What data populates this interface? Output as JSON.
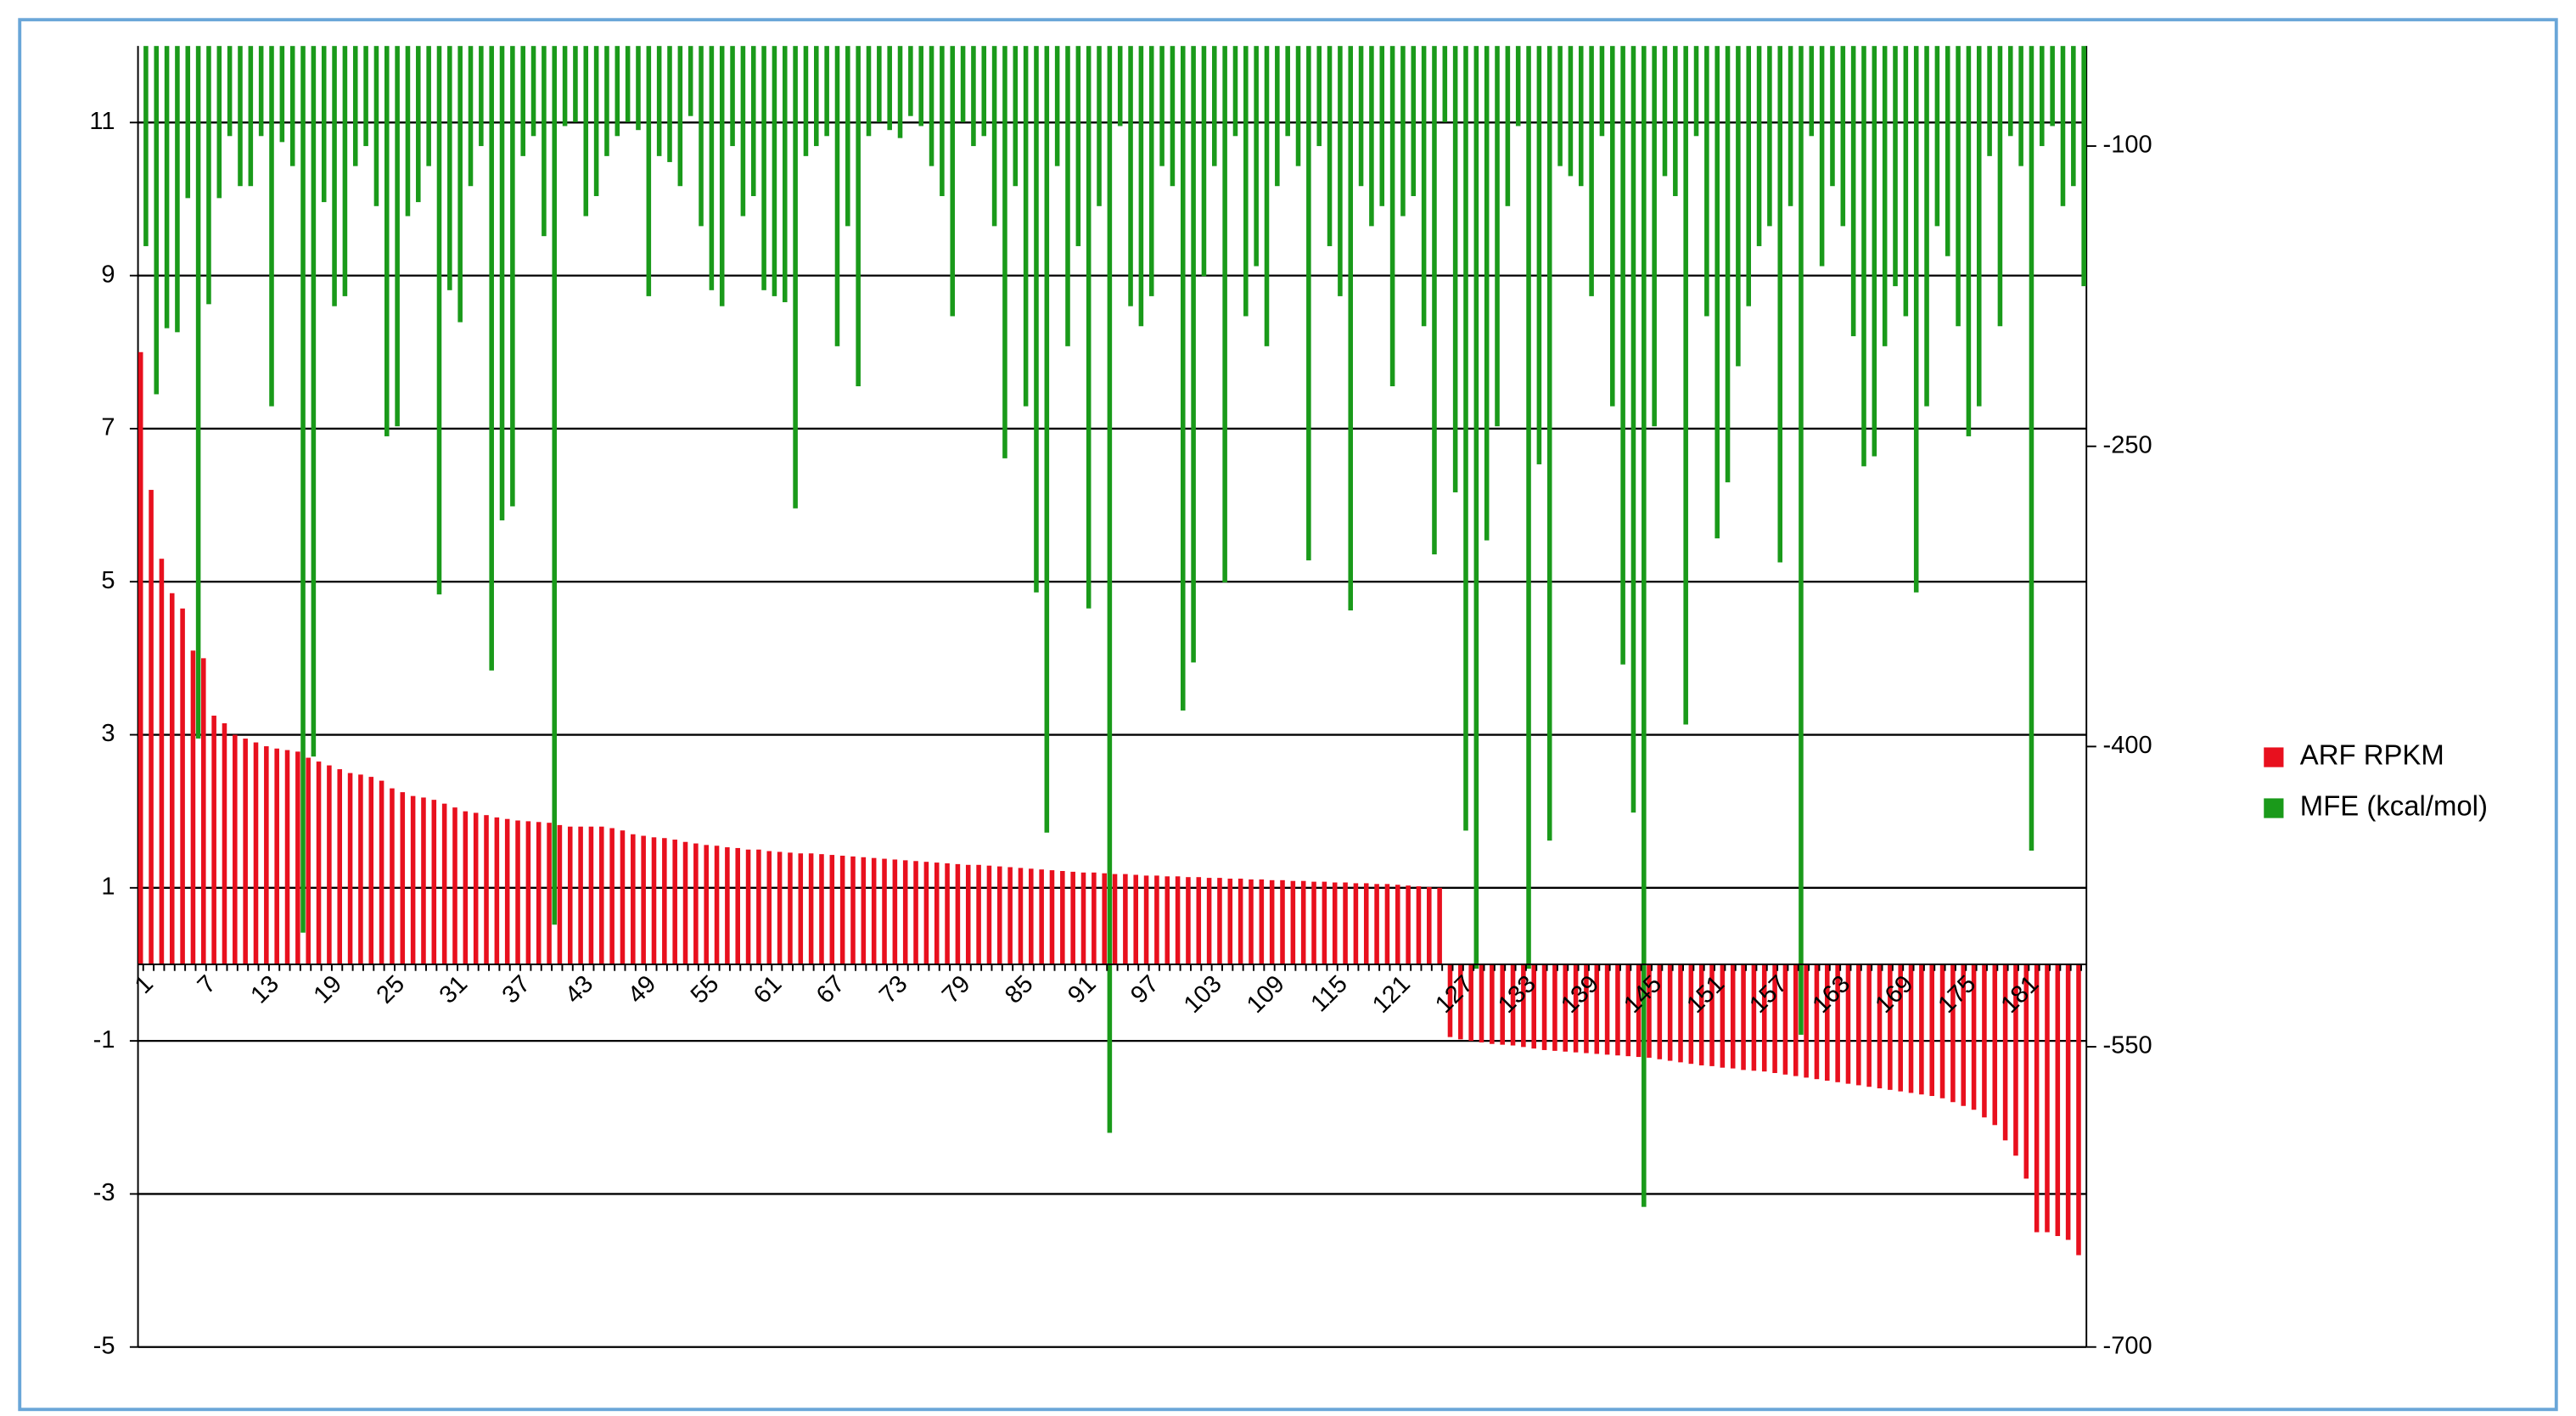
{
  "chart_data": {
    "type": "bar",
    "categories": [
      1,
      null,
      null,
      null,
      null,
      null,
      7,
      null,
      null,
      null,
      null,
      null,
      13,
      null,
      null,
      null,
      null,
      null,
      19,
      null,
      null,
      null,
      null,
      null,
      25,
      null,
      null,
      null,
      null,
      null,
      31,
      null,
      null,
      null,
      null,
      null,
      37,
      null,
      null,
      null,
      null,
      null,
      43,
      null,
      null,
      null,
      null,
      null,
      49,
      null,
      null,
      null,
      null,
      null,
      55,
      null,
      null,
      null,
      null,
      null,
      61,
      null,
      null,
      null,
      null,
      null,
      67,
      null,
      null,
      null,
      null,
      null,
      73,
      null,
      null,
      null,
      null,
      null,
      79,
      null,
      null,
      null,
      null,
      null,
      85,
      null,
      null,
      null,
      null,
      null,
      91,
      null,
      null,
      null,
      null,
      null,
      97,
      null,
      null,
      null,
      null,
      null,
      103,
      null,
      null,
      null,
      null,
      null,
      109,
      null,
      null,
      null,
      null,
      null,
      115,
      null,
      null,
      null,
      null,
      null,
      121,
      null,
      null,
      null,
      null,
      null,
      127,
      null,
      null,
      null,
      null,
      null,
      133,
      null,
      null,
      null,
      null,
      null,
      139,
      null,
      null,
      null,
      null,
      null,
      145,
      null,
      null,
      null,
      null,
      null,
      151,
      null,
      null,
      null,
      null,
      null,
      157,
      null,
      null,
      null,
      null,
      null,
      163,
      null,
      null,
      null,
      null,
      null,
      169,
      null,
      null,
      null,
      null,
      null,
      175,
      null,
      null,
      null,
      null,
      null,
      181,
      null,
      null,
      null,
      null,
      null
    ],
    "series": [
      {
        "name": "ARF RPKM",
        "color": "#e8101e",
        "values": [
          8.0,
          6.2,
          5.3,
          4.85,
          4.65,
          4.1,
          4.0,
          3.25,
          3.15,
          3.0,
          2.95,
          2.9,
          2.85,
          2.82,
          2.8,
          2.78,
          2.7,
          2.65,
          2.6,
          2.55,
          2.5,
          2.48,
          2.45,
          2.4,
          2.3,
          2.25,
          2.2,
          2.18,
          2.15,
          2.1,
          2.05,
          2.0,
          1.98,
          1.95,
          1.92,
          1.9,
          1.88,
          1.87,
          1.86,
          1.85,
          1.82,
          1.8,
          1.8,
          1.8,
          1.8,
          1.78,
          1.75,
          1.7,
          1.68,
          1.66,
          1.65,
          1.63,
          1.6,
          1.58,
          1.56,
          1.55,
          1.53,
          1.52,
          1.5,
          1.5,
          1.48,
          1.47,
          1.46,
          1.45,
          1.45,
          1.44,
          1.43,
          1.42,
          1.41,
          1.4,
          1.39,
          1.38,
          1.37,
          1.36,
          1.35,
          1.34,
          1.33,
          1.32,
          1.31,
          1.3,
          1.3,
          1.29,
          1.28,
          1.27,
          1.26,
          1.25,
          1.24,
          1.23,
          1.22,
          1.21,
          1.2,
          1.2,
          1.19,
          1.18,
          1.18,
          1.17,
          1.16,
          1.16,
          1.15,
          1.15,
          1.14,
          1.14,
          1.13,
          1.13,
          1.12,
          1.12,
          1.11,
          1.11,
          1.1,
          1.1,
          1.09,
          1.09,
          1.08,
          1.08,
          1.07,
          1.07,
          1.06,
          1.06,
          1.05,
          1.05,
          1.04,
          1.03,
          1.02,
          1.01,
          1.0,
          -0.95,
          -0.98,
          -1.0,
          -1.02,
          -1.04,
          -1.05,
          -1.06,
          -1.08,
          -1.1,
          -1.12,
          -1.13,
          -1.14,
          -1.15,
          -1.16,
          -1.17,
          -1.18,
          -1.19,
          -1.2,
          -1.21,
          -1.22,
          -1.24,
          -1.26,
          -1.28,
          -1.3,
          -1.32,
          -1.33,
          -1.35,
          -1.36,
          -1.38,
          -1.39,
          -1.4,
          -1.42,
          -1.44,
          -1.46,
          -1.48,
          -1.5,
          -1.52,
          -1.54,
          -1.56,
          -1.58,
          -1.6,
          -1.62,
          -1.64,
          -1.66,
          -1.68,
          -1.7,
          -1.72,
          -1.75,
          -1.8,
          -1.85,
          -1.9,
          -2.0,
          -2.1,
          -2.3,
          -2.5,
          -2.8,
          -3.5,
          -3.5,
          -3.55,
          -3.6,
          -3.8
        ]
      },
      {
        "name": "MFE (kcal/mol)",
        "color": "#1a9a1a",
        "axis": "y2",
        "values": [
          -150,
          -224,
          -191,
          -193,
          -126,
          -396,
          -179,
          -126,
          -95,
          -120,
          -120,
          -95,
          -230,
          -98,
          -110,
          -493,
          -405,
          -128,
          -180,
          -175,
          -110,
          -100,
          -130,
          -245,
          -240,
          -135,
          -128,
          -110,
          -324,
          -172,
          -188,
          -120,
          -100,
          -362,
          -287,
          -280,
          -105,
          -95,
          -145,
          -489,
          -90,
          -88,
          -135,
          -125,
          -105,
          -95,
          -88,
          -92,
          -175,
          -105,
          -108,
          -120,
          -85,
          -140,
          -172,
          -180,
          -100,
          -135,
          -125,
          -172,
          -175,
          -178,
          -281,
          -105,
          -100,
          -95,
          -200,
          -140,
          -220,
          -95,
          -88,
          -92,
          -96,
          -85,
          -90,
          -110,
          -125,
          -185,
          -88,
          -100,
          -95,
          -140,
          -256,
          -120,
          -230,
          -323,
          -443,
          -110,
          -200,
          -150,
          -331,
          -130,
          -593,
          -90,
          -180,
          -190,
          -175,
          -110,
          -120,
          -382,
          -358,
          -165,
          -110,
          -318,
          -95,
          -185,
          -160,
          -200,
          -120,
          -95,
          -110,
          -307,
          -100,
          -150,
          -175,
          -332,
          -120,
          -140,
          -130,
          -220,
          -135,
          -125,
          -190,
          -304,
          -88,
          -273,
          -442,
          -511,
          -297,
          -240,
          -130,
          -90,
          -511,
          -259,
          -447,
          -110,
          -115,
          -120,
          -175,
          -95,
          -230,
          -359,
          -433,
          -630,
          -240,
          -115,
          -125,
          -389,
          -95,
          -185,
          -296,
          -268,
          -210,
          -180,
          -150,
          -140,
          -308,
          -130,
          -544,
          -95,
          -160,
          -120,
          -140,
          -195,
          -260,
          -255,
          -200,
          -170,
          -185,
          -323,
          -230,
          -140,
          -155,
          -190,
          -245,
          -230,
          -105,
          -190,
          -95,
          -110,
          -452,
          -100,
          -90,
          -130,
          -120,
          -170
        ]
      }
    ],
    "ylim": [
      -5,
      12
    ],
    "yticks": [
      -5,
      -3,
      -1,
      1,
      3,
      5,
      7,
      9,
      11
    ],
    "y2lim": [
      -700,
      -50
    ],
    "y2ticks": [
      -700,
      -550,
      -400,
      -250,
      -100
    ],
    "grid": true,
    "legend": "right"
  }
}
